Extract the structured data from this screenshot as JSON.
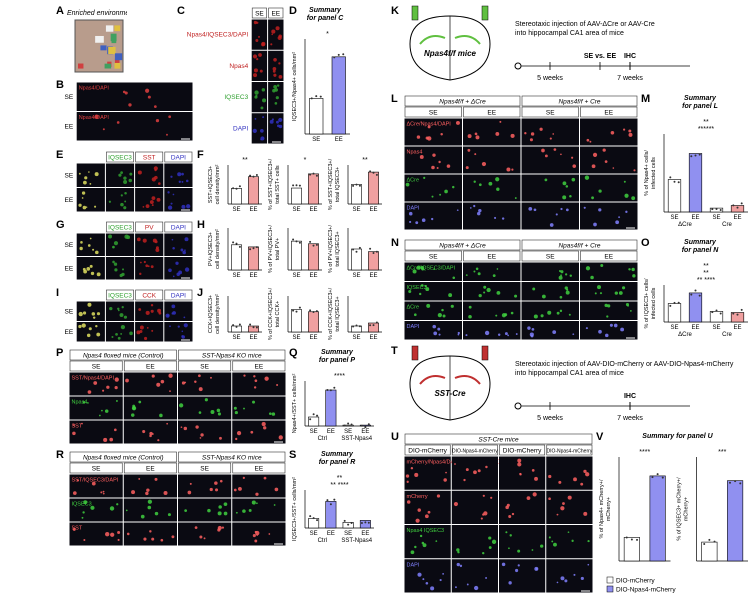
{
  "panels": [
    {
      "letter": "A",
      "type": "photo",
      "title": "Enriched environment (EE)"
    },
    {
      "letter": "B",
      "type": "micrograph",
      "columns": [],
      "rows": [
        "SE",
        "EE"
      ],
      "row_label_position": "outside",
      "overlay": "Npas4/DAPI",
      "overlay_color": "#e04040"
    },
    {
      "letter": "C",
      "type": "micrograph",
      "columns": [
        "SE",
        "EE"
      ],
      "rows": [
        "Npas4/IQSEC3/DAPI",
        "Npas4",
        "IQSEC3",
        "DAPI"
      ],
      "row_colors": [
        "#c02020",
        "#c02020",
        "#30a030",
        "#3030c0"
      ],
      "row_label_position": "outside"
    },
    {
      "letter": "D",
      "type": "bar",
      "title": [
        "Summary",
        "for panel C"
      ],
      "charts": [
        {
          "ylabel": [
            "IQSEC3+/Npas4+ cells/mm²"
          ],
          "categories": [
            "SE",
            "EE"
          ],
          "values": [
            30,
            65
          ],
          "ylim": [
            0,
            80
          ],
          "colors": [
            "#ffffff",
            "#9090f0"
          ],
          "significance": [
            "*"
          ]
        }
      ]
    },
    {
      "letter": "E",
      "type": "micrograph",
      "columns": [
        null,
        "IQSEC3",
        "SST",
        "DAPI"
      ],
      "column_colors": [
        "#000000",
        "#30a030",
        "#c02020",
        "#3030c0"
      ],
      "rows": [
        "SE",
        "EE"
      ],
      "row_label_position": "outside"
    },
    {
      "letter": "F",
      "type": "bar",
      "charts": [
        {
          "ylabel": [
            "SST+IQSEC3+",
            "cell density/mm²"
          ],
          "categories": [
            "SE",
            "EE"
          ],
          "values": [
            40,
            70
          ],
          "ylim": [
            0,
            100
          ],
          "colors": [
            "#ffffff",
            "#f0a0a0"
          ],
          "significance": [
            "**"
          ]
        },
        {
          "ylabel": [
            "% of SST+IQSEC3+/",
            "total SST+ cells"
          ],
          "categories": [
            "SE",
            "EE"
          ],
          "values": [
            45,
            85
          ],
          "ylim": [
            0,
            110
          ],
          "colors": [
            "#ffffff",
            "#f0a0a0"
          ],
          "significance": [
            "*"
          ]
        },
        {
          "ylabel": [
            "% of SST+IQSEC3+/",
            "total IQSEC3+"
          ],
          "categories": [
            "SE",
            "EE"
          ],
          "values": [
            55,
            90
          ],
          "ylim": [
            0,
            110
          ],
          "colors": [
            "#ffffff",
            "#f0a0a0"
          ],
          "significance": [
            "**"
          ]
        }
      ]
    },
    {
      "letter": "G",
      "type": "micrograph",
      "columns": [
        null,
        "IQSEC3",
        "PV",
        "DAPI"
      ],
      "column_colors": [
        "#000000",
        "#30a030",
        "#c02020",
        "#3030c0"
      ],
      "rows": [
        "SE",
        "EE"
      ],
      "row_label_position": "outside"
    },
    {
      "letter": "H",
      "type": "bar",
      "charts": [
        {
          "ylabel": [
            "PV+IQSEC3+",
            "cell density/mm²"
          ],
          "categories": [
            "SE",
            "EE"
          ],
          "values": [
            60,
            55
          ],
          "ylim": [
            0,
            100
          ],
          "colors": [
            "#ffffff",
            "#f0a0a0"
          ],
          "significance": []
        },
        {
          "ylabel": [
            "% of PV+IQSEC3+/",
            "total PV+"
          ],
          "categories": [
            "SE",
            "EE"
          ],
          "values": [
            55,
            50
          ],
          "ylim": [
            0,
            80
          ],
          "colors": [
            "#ffffff",
            "#f0a0a0"
          ],
          "significance": []
        },
        {
          "ylabel": [
            "% of PV+IQSEC3+/",
            "total IQSEC3+"
          ],
          "categories": [
            "SE",
            "EE"
          ],
          "values": [
            40,
            35
          ],
          "ylim": [
            0,
            80
          ],
          "colors": [
            "#ffffff",
            "#f0a0a0"
          ],
          "significance": []
        }
      ]
    },
    {
      "letter": "I",
      "type": "micrograph",
      "columns": [
        null,
        "IQSEC3",
        "CCK",
        "DAPI"
      ],
      "column_colors": [
        "#000000",
        "#30a030",
        "#c02020",
        "#3030c0"
      ],
      "rows": [
        "SE",
        "EE"
      ],
      "row_label_position": "outside"
    },
    {
      "letter": "J",
      "type": "bar",
      "charts": [
        {
          "ylabel": [
            "CCK+IQSEC3+",
            "cell density/mm²"
          ],
          "categories": [
            "SE",
            "EE"
          ],
          "values": [
            10,
            10
          ],
          "ylim": [
            0,
            60
          ],
          "colors": [
            "#ffffff",
            "#f0a0a0"
          ],
          "significance": []
        },
        {
          "ylabel": [
            "% of CCK+IQSEC3+/",
            "total CCK+"
          ],
          "categories": [
            "SE",
            "EE"
          ],
          "values": [
            50,
            45
          ],
          "ylim": [
            0,
            80
          ],
          "colors": [
            "#ffffff",
            "#f0a0a0"
          ],
          "significance": []
        },
        {
          "ylabel": [
            "% of CCK+IQSEC3+/",
            "total IQSEC3+"
          ],
          "categories": [
            "SE",
            "EE"
          ],
          "values": [
            10,
            15
          ],
          "ylim": [
            0,
            60
          ],
          "colors": [
            "#ffffff",
            "#f0a0a0"
          ],
          "significance": []
        }
      ]
    },
    {
      "letter": "P",
      "type": "micrograph",
      "groups": [
        "Npas4 floxed mice (Control)",
        "SST-Npas4 KO mice"
      ],
      "columns": [
        "SE",
        "EE",
        "SE",
        "EE"
      ],
      "rows": [
        "SST/Npas4/DAPI",
        "Npas4",
        "SST"
      ],
      "row_colors": [
        "#ff6060",
        "#40d040",
        "#ff6060"
      ],
      "row_label_position": "inside"
    },
    {
      "letter": "Q",
      "type": "bar",
      "title": [
        "Summary",
        "for panel P"
      ],
      "charts": [
        {
          "ylabel": [
            "Npas4+/SST+ cells/mm²"
          ],
          "categories": [
            "SE",
            "EE",
            "SE",
            "EE"
          ],
          "groups": [
            "Ctrl",
            "SST-Npas4"
          ],
          "values": [
            20,
            80,
            2,
            2
          ],
          "ylim": [
            0,
            100
          ],
          "colors": [
            "#ffffff",
            "#9090f0",
            "#ffffff",
            "#9090f0"
          ],
          "significance": [
            "****"
          ]
        }
      ]
    },
    {
      "letter": "R",
      "type": "micrograph",
      "groups": [
        "Npas4 floxed mice (Control)",
        "SST-Npas4 KO mice"
      ],
      "columns": [
        "SE",
        "EE",
        "SE",
        "EE"
      ],
      "rows": [
        "SST/IQSEC3/DAPI",
        "IQSEC3",
        "SST"
      ],
      "row_colors": [
        "#ff6060",
        "#40d040",
        "#ff6060"
      ],
      "row_label_position": "inside"
    },
    {
      "letter": "S",
      "type": "bar",
      "title": [
        "Summary",
        "for panel R"
      ],
      "charts": [
        {
          "ylabel": [
            "IQSEC3+/SST+ cells/mm²"
          ],
          "categories": [
            "SE",
            "EE",
            "SE",
            "EE"
          ],
          "groups": [
            "Ctrl",
            "SST-Npas4"
          ],
          "values": [
            25,
            70,
            15,
            20
          ],
          "ylim": [
            0,
            100
          ],
          "colors": [
            "#ffffff",
            "#9090f0",
            "#ffffff",
            "#9090f0"
          ],
          "significance": [
            "**",
            "** ****"
          ]
        }
      ]
    },
    {
      "letter": "K",
      "type": "schematic",
      "brain_label": "Npas4f/f mice",
      "syringe_color": "#60c040",
      "description": [
        "Stereotaxic injection of AAV-ΔCre or AAV-Cre",
        "into hippocampal CA1 area of mice"
      ],
      "timeline": [
        "5 weeks",
        "SE vs. EE",
        "IHC",
        "7 weeks"
      ]
    },
    {
      "letter": "L",
      "type": "micrograph",
      "groups": [
        "Npas4f/f + ΔCre",
        "Npas4f/f + Cre"
      ],
      "columns": [
        "SE",
        "EE",
        "SE",
        "EE"
      ],
      "rows": [
        "ΔCre/Npas4/DAPI",
        "Npas4",
        "ΔCre",
        "DAPI"
      ],
      "row_colors": [
        "#ff6060",
        "#ff6060",
        "#40d040",
        "#8080ff"
      ],
      "row_label_position": "inside"
    },
    {
      "letter": "M",
      "type": "bar",
      "title": [
        "Summary",
        "for panel L"
      ],
      "charts": [
        {
          "ylabel": [
            "% of Npas4+ cells/",
            "infected cells"
          ],
          "categories": [
            "SE",
            "EE",
            "SE",
            "EE"
          ],
          "groups": [
            "ΔCre",
            "Cre"
          ],
          "values": [
            25,
            45,
            3,
            5
          ],
          "ylim": [
            0,
            60
          ],
          "colors": [
            "#ffffff",
            "#9090f0",
            "#ffffff",
            "#f0a0a0"
          ],
          "significance": [
            "**",
            "******"
          ]
        }
      ]
    },
    {
      "letter": "N",
      "type": "micrograph",
      "groups": [
        "Npas4f/f + ΔCre",
        "Npas4f/f + Cre"
      ],
      "columns": [
        "SE",
        "EE",
        "SE",
        "EE"
      ],
      "rows": [
        "ΔCre/IQSEC3/DAPI",
        "IQSEC3",
        "ΔCre",
        "DAPI"
      ],
      "row_colors": [
        "#40d040",
        "#40d040",
        "#40d040",
        "#8080ff"
      ],
      "row_label_position": "inside"
    },
    {
      "letter": "O",
      "type": "bar",
      "title": [
        "Summary",
        "for panel N"
      ],
      "charts": [
        {
          "ylabel": [
            "% of IQSEC3+ cells/",
            "infected cells"
          ],
          "categories": [
            "SE",
            "EE",
            "SE",
            "EE"
          ],
          "groups": [
            "ΔCre",
            "Cre"
          ],
          "values": [
            35,
            55,
            20,
            18
          ],
          "ylim": [
            0,
            70
          ],
          "colors": [
            "#ffffff",
            "#9090f0",
            "#ffffff",
            "#f0a0a0"
          ],
          "significance": [
            "**",
            "**",
            "** ****"
          ]
        }
      ]
    },
    {
      "letter": "T",
      "type": "schematic",
      "brain_label": "SST-Cre",
      "syringe_color": "#c03030",
      "description": [
        "Stereotaxic injection of AAV-DIO-mCherry or AAV-DIO-Npas4-mCherry",
        "into hippocampal CA1 area of mice"
      ],
      "timeline": [
        "5 weeks",
        "IHC",
        "7 weeks"
      ]
    },
    {
      "letter": "U",
      "type": "micrograph",
      "groups": [
        "SST-Cre mice"
      ],
      "columns": [
        "DIO-mCherry",
        "DIO-Npas4-mCherry",
        "DIO-mCherry",
        "DIO-Npas4-mCherry"
      ],
      "rows": [
        "mCherry/Npas4/DAPI  mCherry/IQSEC3/DAPI",
        "mCherry",
        "Npas4  IQSEC3",
        "DAPI"
      ],
      "row_colors": [
        "#ff6060",
        "#ff6060",
        "#40d040",
        "#8080ff"
      ],
      "row_label_position": "inside"
    },
    {
      "letter": "V",
      "type": "bar",
      "title": [
        "Summary for panel U"
      ],
      "charts": [
        {
          "ylabel": [
            "% of Npas4+ mCherry+/",
            "mCherry+"
          ],
          "categories": [
            null,
            null
          ],
          "values": [
            25,
            90
          ],
          "ylim": [
            0,
            110
          ],
          "colors": [
            "#ffffff",
            "#9090f0"
          ],
          "significance": [
            "****"
          ]
        },
        {
          "ylabel": [
            "% of IQSEC3+ mCherry+/",
            "mCherry+"
          ],
          "categories": [
            null,
            null
          ],
          "values": [
            20,
            85
          ],
          "ylim": [
            0,
            110
          ],
          "colors": [
            "#ffffff",
            "#9090f0"
          ],
          "significance": [
            "***"
          ]
        }
      ],
      "legend": [
        {
          "name": "DIO-mCherry",
          "color": "#ffffff"
        },
        {
          "name": "DIO-Npas4-mCherry",
          "color": "#9090f0"
        }
      ]
    }
  ]
}
